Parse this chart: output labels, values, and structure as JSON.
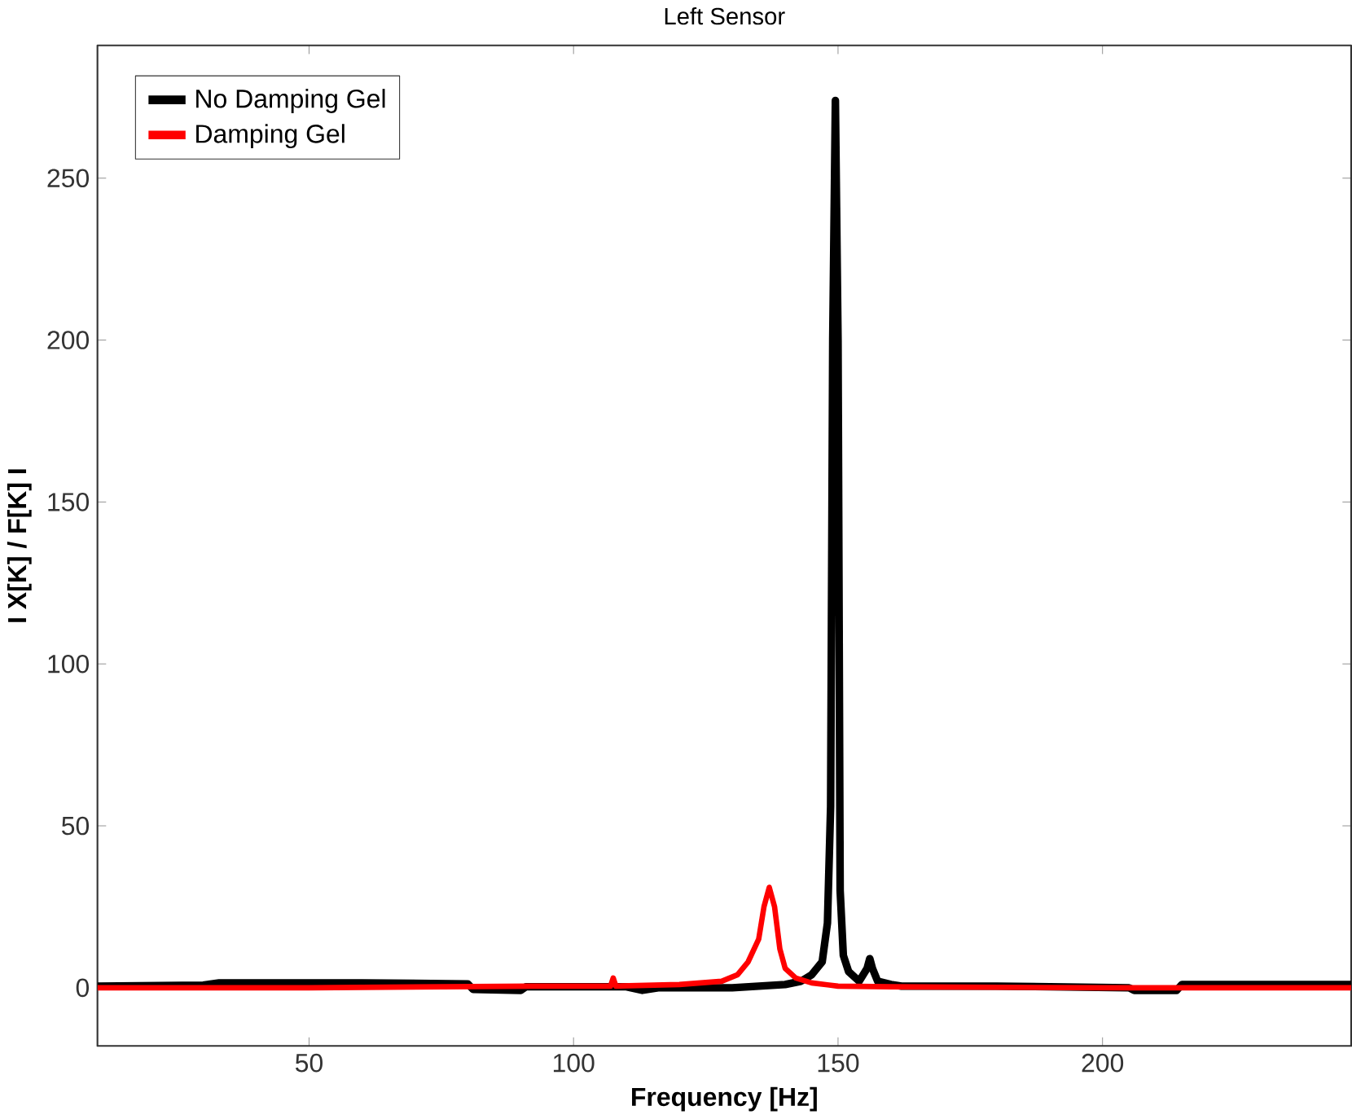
{
  "chart_data": {
    "type": "line",
    "title": "Left Sensor",
    "xlabel": "Frequency [Hz]",
    "ylabel": "I X[K] / F[K] I",
    "xlim": [
      10,
      247
    ],
    "ylim": [
      -18,
      291
    ],
    "xticks": [
      50,
      100,
      150,
      200
    ],
    "yticks": [
      0,
      50,
      100,
      150,
      200,
      250
    ],
    "grid": false,
    "legend": "top left",
    "marker": "none",
    "line_style": "solid",
    "series": [
      {
        "name": "No Damping Gel",
        "color": "#000000",
        "x": [
          10,
          30,
          33,
          60,
          80,
          81,
          90,
          91,
          110,
          113,
          116,
          130,
          140,
          143,
          145,
          147,
          148,
          148.6,
          149,
          149.5,
          150,
          150.4,
          151,
          152,
          154,
          155.5,
          156,
          156.5,
          157.5,
          160,
          162,
          180,
          205,
          206,
          214,
          215,
          247
        ],
        "values": [
          0.5,
          0.8,
          1.5,
          1.5,
          1.2,
          -0.5,
          -0.8,
          0.3,
          0.3,
          -0.8,
          0,
          0,
          1,
          2,
          4,
          8,
          20,
          56,
          200,
          274,
          200,
          30,
          10,
          5,
          2,
          6,
          9,
          6,
          2,
          1,
          0.5,
          0.5,
          0,
          -0.8,
          -0.8,
          1,
          1
        ]
      },
      {
        "name": "Damping Gel",
        "color": "#ff0000",
        "x": [
          10,
          50,
          92,
          107,
          107.5,
          108,
          120,
          128,
          131,
          133,
          135,
          136,
          137,
          138,
          139,
          140,
          142,
          145,
          150,
          160,
          200,
          247
        ],
        "values": [
          0,
          0,
          0.5,
          0.5,
          3,
          0.5,
          1,
          2,
          4,
          8,
          15,
          25,
          31,
          25,
          12,
          6,
          3,
          1.5,
          0.5,
          0.3,
          0,
          0
        ]
      }
    ]
  }
}
